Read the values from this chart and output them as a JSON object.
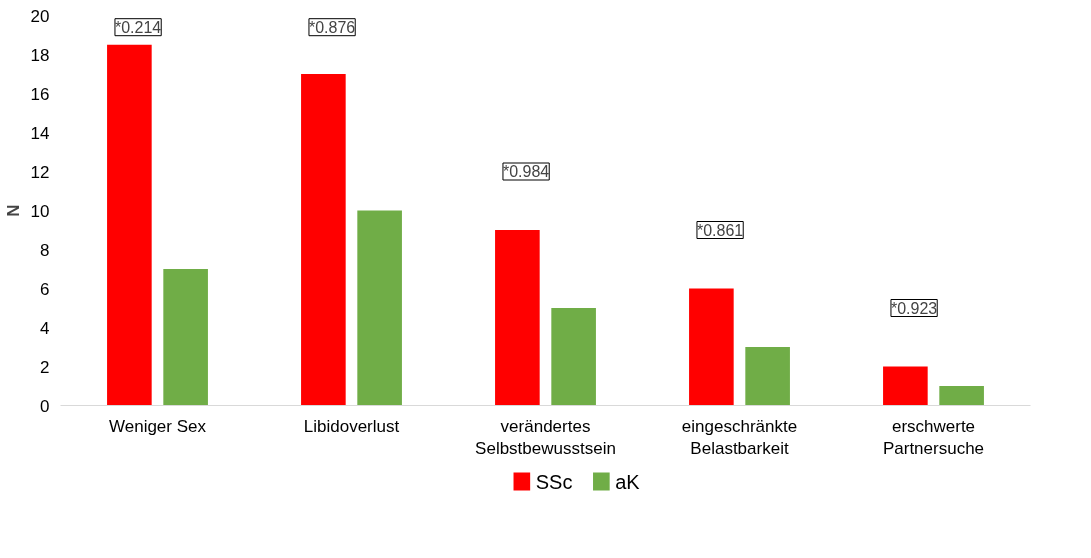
{
  "chart_data": {
    "type": "bar",
    "ylabel": "N",
    "categories": [
      "Weniger Sex",
      "Libidoverlust",
      "verändertes\nSelbstbewusstsein",
      "eingeschränkte\nBelastbarkeit",
      "erschwerte\nPartnersuche"
    ],
    "series": [
      {
        "name": "SSc",
        "color": "#ff0000",
        "values": [
          18.5,
          17,
          9,
          6,
          2
        ]
      },
      {
        "name": "aK",
        "color": "#70ad47",
        "values": [
          7,
          10,
          5,
          3,
          1
        ]
      }
    ],
    "ylim": [
      0,
      20
    ],
    "yticks": [
      0,
      2,
      4,
      6,
      8,
      10,
      12,
      14,
      16,
      18,
      20
    ],
    "grid": false,
    "legend": "bottom",
    "annotations": [
      "*0.214",
      "*0.876",
      "*0.984",
      "*0.861",
      "*0.923"
    ]
  }
}
